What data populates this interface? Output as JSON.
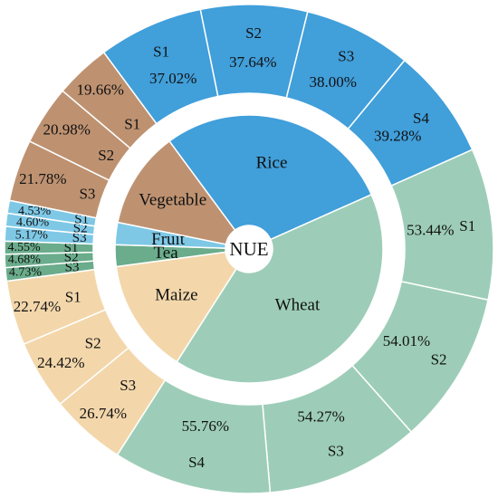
{
  "chart_data": {
    "type": "pie",
    "subtype": "nested-donut",
    "center_label": "NUE",
    "colors": {
      "Rice": "#419fda",
      "Wheat": "#9dcdb8",
      "Maize": "#f3d7ab",
      "Tea": "#6aac8b",
      "Fruit": "#7ec8e6",
      "Vegetable": "#be9271",
      "separator": "#ffffff"
    },
    "inner_ring": [
      {
        "name": "Rice",
        "value": 151.94
      },
      {
        "name": "Wheat",
        "value": 217.48
      },
      {
        "name": "Maize",
        "value": 73.9
      },
      {
        "name": "Tea",
        "value": 13.96
      },
      {
        "name": "Fruit",
        "value": 14.3
      },
      {
        "name": "Vegetable",
        "value": 62.42
      }
    ],
    "outer_ring": [
      {
        "crop": "Rice",
        "name": "S1",
        "value": 37.02,
        "label": "37.02%"
      },
      {
        "crop": "Rice",
        "name": "S2",
        "value": 37.64,
        "label": "37.64%"
      },
      {
        "crop": "Rice",
        "name": "S3",
        "value": 38.0,
        "label": "38.00%"
      },
      {
        "crop": "Rice",
        "name": "S4",
        "value": 39.28,
        "label": "39.28%"
      },
      {
        "crop": "Wheat",
        "name": "S1",
        "value": 53.44,
        "label": "53.44%"
      },
      {
        "crop": "Wheat",
        "name": "S2",
        "value": 54.01,
        "label": "54.01%"
      },
      {
        "crop": "Wheat",
        "name": "S3",
        "value": 54.27,
        "label": "54.27%"
      },
      {
        "crop": "Wheat",
        "name": "S4",
        "value": 55.76,
        "label": "55.76%"
      },
      {
        "crop": "Maize",
        "name": "S1",
        "value": 22.74,
        "label": "22.74%"
      },
      {
        "crop": "Maize",
        "name": "S2",
        "value": 24.42,
        "label": "24.42%"
      },
      {
        "crop": "Maize",
        "name": "S3",
        "value": 26.74,
        "label": "26.74%"
      },
      {
        "crop": "Tea",
        "name": "S1",
        "value": 4.55,
        "label": "4.55%"
      },
      {
        "crop": "Tea",
        "name": "S2",
        "value": 4.68,
        "label": "4.68%"
      },
      {
        "crop": "Tea",
        "name": "S3",
        "value": 4.73,
        "label": "4.73%"
      },
      {
        "crop": "Fruit",
        "name": "S1",
        "value": 4.53,
        "label": "4.53%"
      },
      {
        "crop": "Fruit",
        "name": "S2",
        "value": 4.6,
        "label": "4.60%"
      },
      {
        "crop": "Fruit",
        "name": "S3",
        "value": 5.17,
        "label": "5.17%"
      },
      {
        "crop": "Vegetable",
        "name": "S1",
        "value": 19.66,
        "label": "19.66%"
      },
      {
        "crop": "Vegetable",
        "name": "S2",
        "value": 20.98,
        "label": "20.98%"
      },
      {
        "crop": "Vegetable",
        "name": "S3",
        "value": 21.78,
        "label": "21.78%"
      }
    ],
    "title": "",
    "legend": "none"
  }
}
